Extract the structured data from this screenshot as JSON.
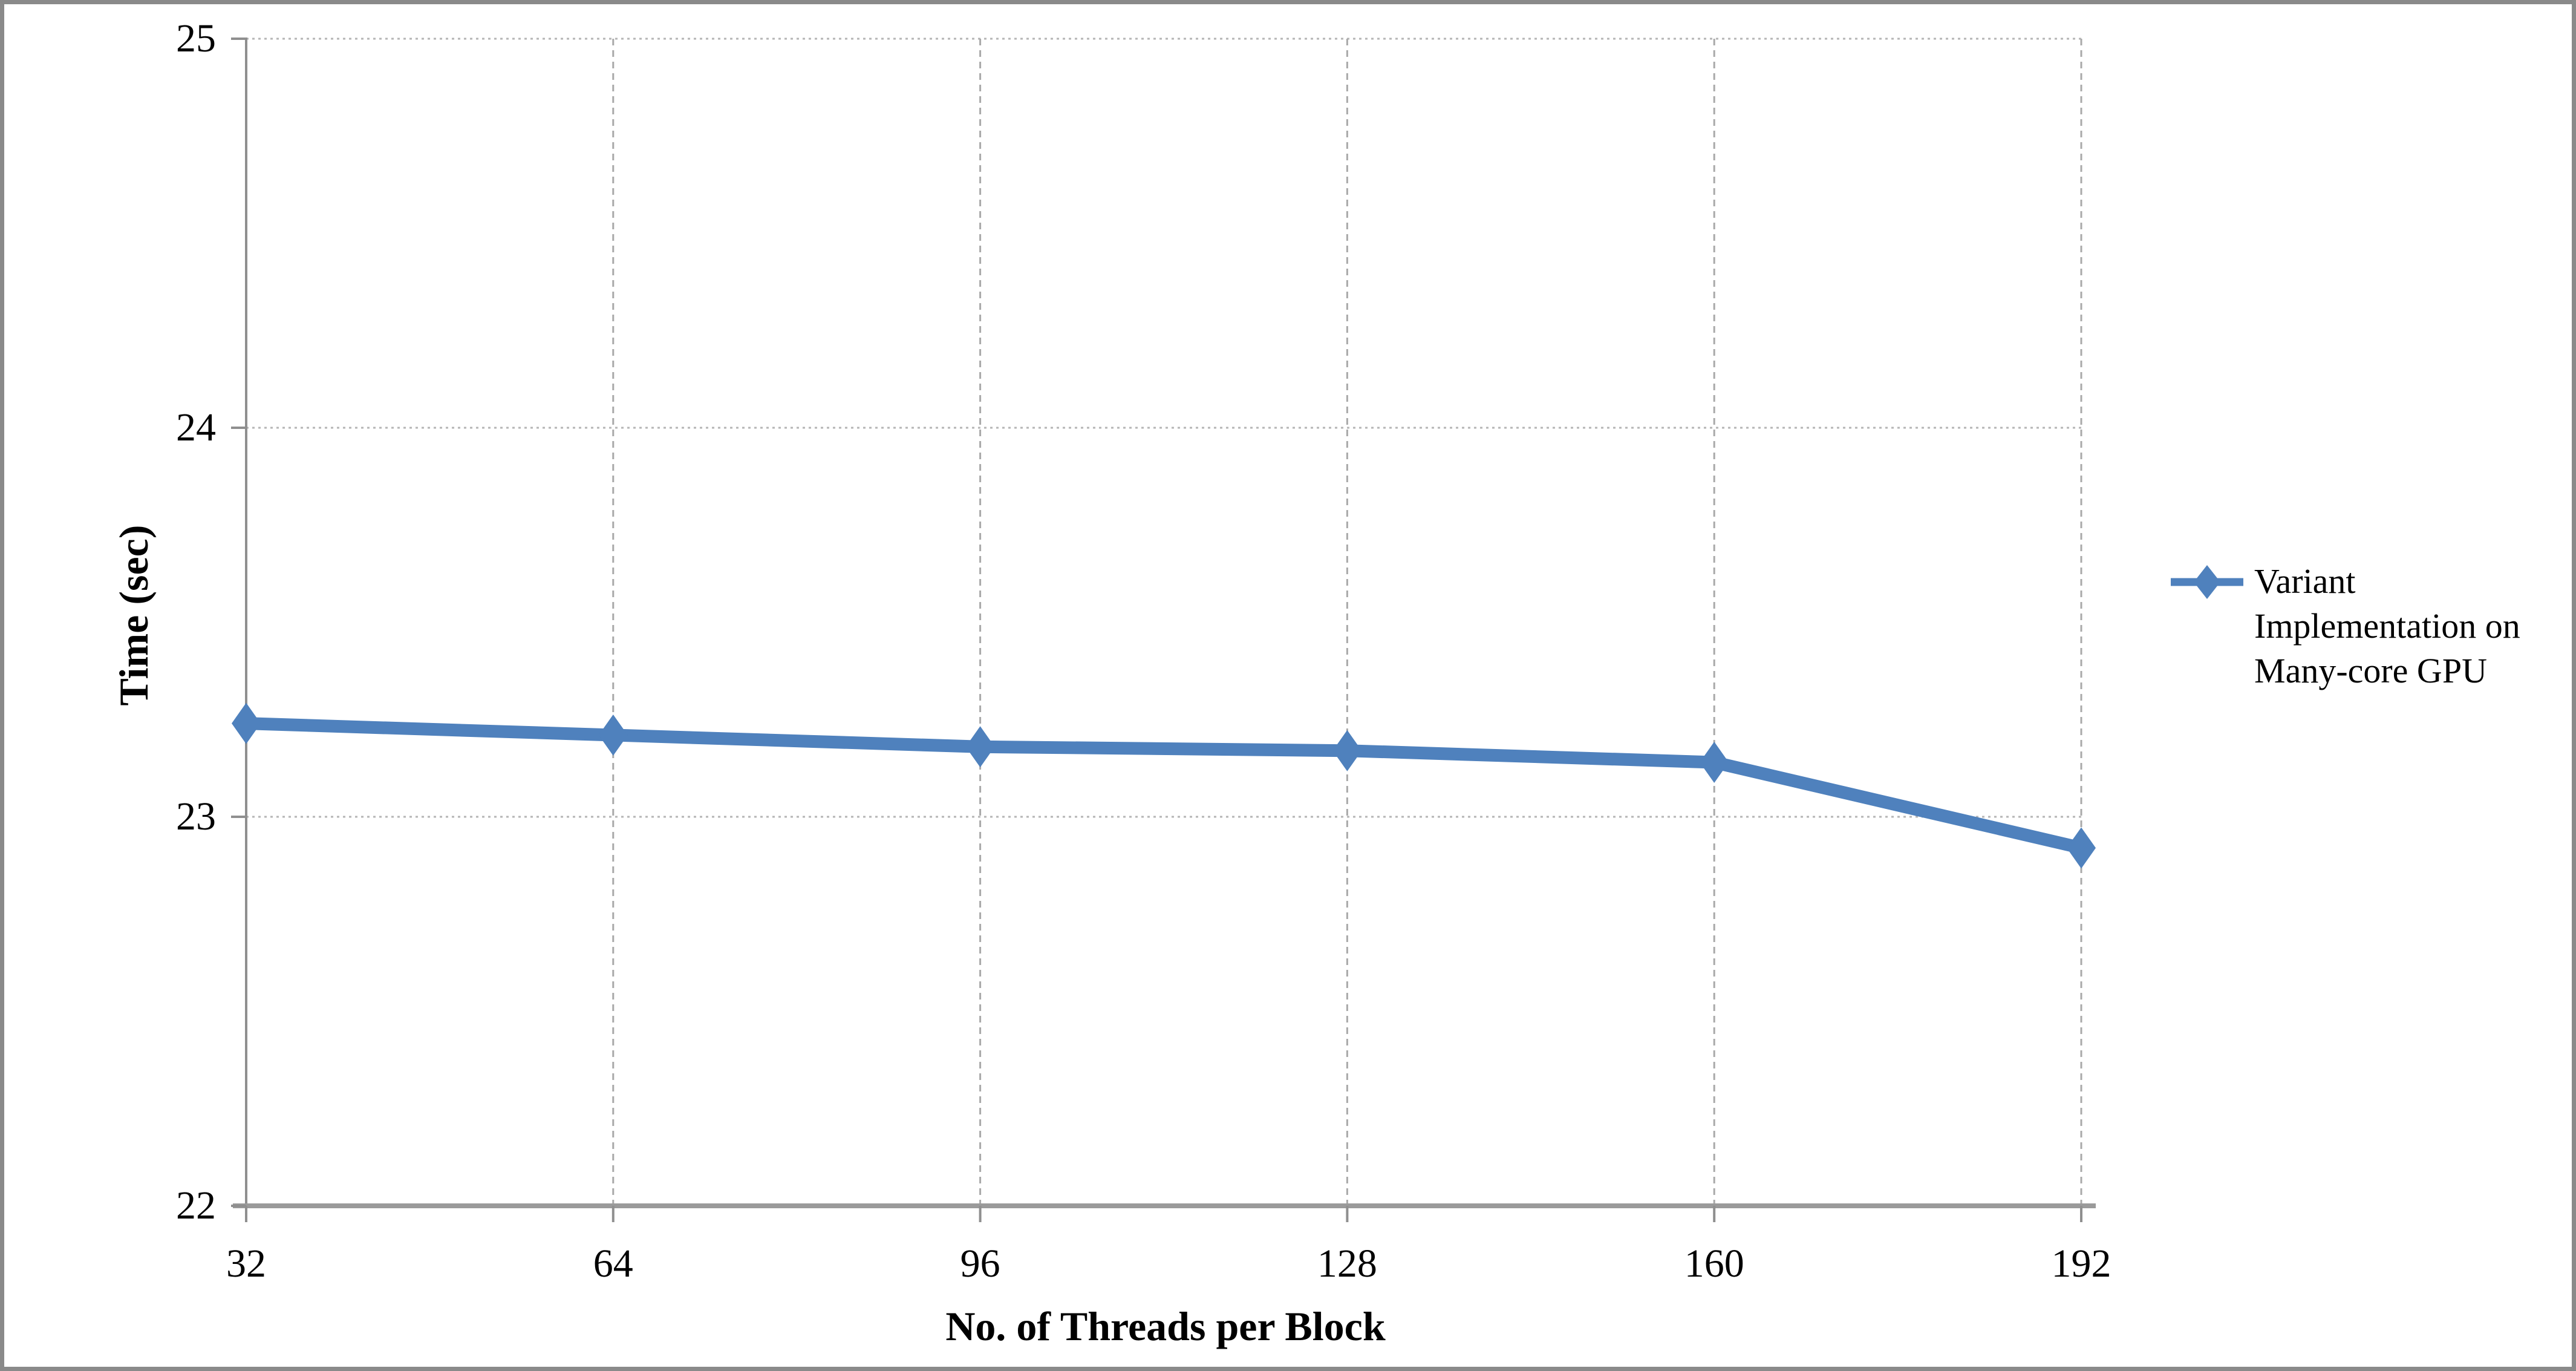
{
  "chart_data": {
    "type": "line",
    "title": "",
    "categories": [
      "32",
      "64",
      "96",
      "128",
      "160",
      "192"
    ],
    "series": [
      {
        "name": "Variant Implementation on Many-core GPU",
        "color": "#4f81bd",
        "marker": "diamond",
        "values": [
          23.24,
          23.21,
          23.18,
          23.17,
          23.14,
          22.92
        ]
      }
    ],
    "xlabel": "No. of Threads per Block",
    "ylabel": "Time (sec)",
    "ylim": [
      22,
      25
    ],
    "yticks": [
      22,
      23,
      24,
      25
    ],
    "grid": {
      "horizontal": "dotted",
      "vertical": "dashed",
      "color": "#b5b5b5"
    },
    "legend_position": "right"
  },
  "legend": {
    "lines": [
      "Variant",
      "Implementation on",
      "Many-core GPU"
    ]
  },
  "colors": {
    "series_blue": "#4f81bd",
    "gridline": "#b5b5b5",
    "vertical_gridline": "#a9a9a9",
    "x_axis_line": "#9a9a9a",
    "y_axis_line": "#8f8f8f",
    "frame_border": "#8a8a8a",
    "text": "#000000",
    "background": "#ffffff"
  }
}
